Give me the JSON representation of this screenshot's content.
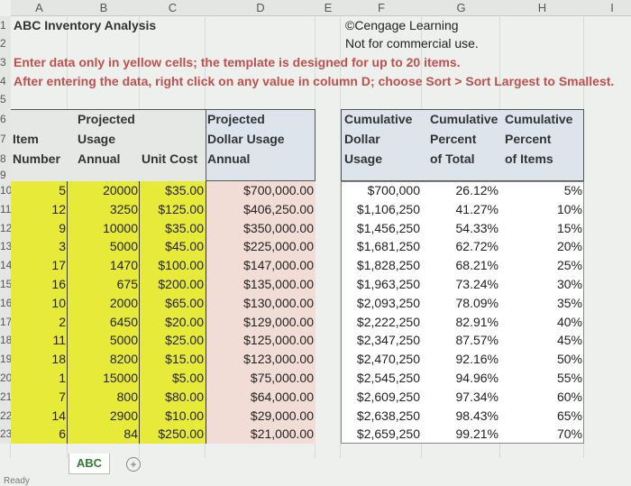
{
  "columns": [
    "A",
    "B",
    "C",
    "D",
    "E",
    "F",
    "G",
    "H",
    "I"
  ],
  "title": "ABC Inventory Analysis",
  "copyright": "©Cengage Learning",
  "notice": "Not for commercial use.",
  "instruction1": "Enter data only in yellow cells; the template is designed for up to 20 items.",
  "instruction2": "After entering the data, right click on any value in column D; choose Sort > Sort Largest to Smallest.",
  "headers": {
    "a": [
      "",
      "Item",
      "Number"
    ],
    "b": [
      "Projected",
      "Usage",
      "Annual"
    ],
    "c": [
      "",
      "",
      "Unit Cost"
    ],
    "d": [
      "Projected",
      "Dollar Usage",
      "Annual"
    ],
    "f": [
      "Cumulative",
      "Dollar",
      "Usage"
    ],
    "g": [
      "Cumulative",
      "Percent",
      "of Total"
    ],
    "h": [
      "Cumulative",
      "Percent",
      "of Items"
    ]
  },
  "rows": [
    [
      "5",
      "20000",
      "$35.00",
      "$700,000.00",
      "$700,000",
      "26.12%",
      "5%"
    ],
    [
      "12",
      "3250",
      "$125.00",
      "$406,250.00",
      "$1,106,250",
      "41.27%",
      "10%"
    ],
    [
      "9",
      "10000",
      "$35.00",
      "$350,000.00",
      "$1,456,250",
      "54.33%",
      "15%"
    ],
    [
      "3",
      "5000",
      "$45.00",
      "$225,000.00",
      "$1,681,250",
      "62.72%",
      "20%"
    ],
    [
      "17",
      "1470",
      "$100.00",
      "$147,000.00",
      "$1,828,250",
      "68.21%",
      "25%"
    ],
    [
      "16",
      "675",
      "$200.00",
      "$135,000.00",
      "$1,963,250",
      "73.24%",
      "30%"
    ],
    [
      "10",
      "2000",
      "$65.00",
      "$130,000.00",
      "$2,093,250",
      "78.09%",
      "35%"
    ],
    [
      "2",
      "6450",
      "$20.00",
      "$129,000.00",
      "$2,222,250",
      "82.91%",
      "40%"
    ],
    [
      "11",
      "5000",
      "$25.00",
      "$125,000.00",
      "$2,347,250",
      "87.57%",
      "45%"
    ],
    [
      "18",
      "8200",
      "$15.00",
      "$123,000.00",
      "$2,470,250",
      "92.16%",
      "50%"
    ],
    [
      "1",
      "15000",
      "$5.00",
      "$75,000.00",
      "$2,545,250",
      "94.96%",
      "55%"
    ],
    [
      "7",
      "800",
      "$80.00",
      "$64,000.00",
      "$2,609,250",
      "97.34%",
      "60%"
    ],
    [
      "14",
      "2900",
      "$10.00",
      "$29,000.00",
      "$2,638,250",
      "98.43%",
      "65%"
    ],
    [
      "6",
      "84",
      "$250.00",
      "$21,000.00",
      "$2,659,250",
      "99.21%",
      "70%"
    ]
  ],
  "sheet_tab": "ABC",
  "status": "Ready",
  "colors": {
    "yellow": "#e8ea3a",
    "pink": "#f2ddd6",
    "blue": "#dde4ec",
    "red": "#c0504d"
  }
}
